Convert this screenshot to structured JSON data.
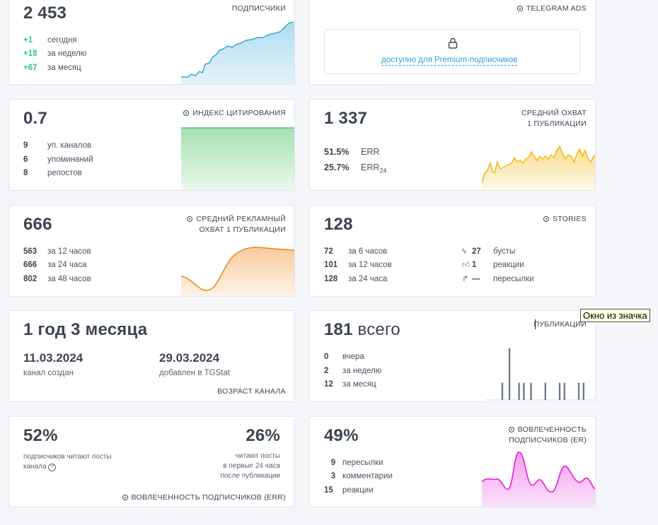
{
  "subscribers": {
    "value": "2 453",
    "title": "ПОДПИСЧИКИ",
    "rows": [
      {
        "num": "+1",
        "label": "сегодня"
      },
      {
        "num": "+18",
        "label": "за неделю"
      },
      {
        "num": "+67",
        "label": "за месяц"
      }
    ],
    "color": "#5bb8de"
  },
  "telegram_ads": {
    "title": "TELEGRAM ADS",
    "lock_icon": "lock-icon",
    "link": "доступно для Premium-подписчиков"
  },
  "citation": {
    "value": "0.7",
    "title": "ИНДЕКС ЦИТИРОВАНИЯ",
    "rows": [
      {
        "num": "9",
        "label": "уп. каналов"
      },
      {
        "num": "6",
        "label": "упоминаний"
      },
      {
        "num": "8",
        "label": "репостов"
      }
    ],
    "color": "#7ed58f"
  },
  "avg_reach": {
    "value": "1 337",
    "title_line1": "СРЕДНИЙ ОХВАТ",
    "title_line2": "1 ПУБЛИКАЦИИ",
    "err": {
      "num": "51.5%",
      "label": "ERR"
    },
    "err24": {
      "num": "25.7%",
      "label": "ERR",
      "sub": "24"
    },
    "color": "#f2c230"
  },
  "ad_reach": {
    "value": "666",
    "title_line1": "СРЕДНИЙ РЕКЛАМНЫЙ",
    "title_line2": "ОХВАТ 1 ПУБЛИКАЦИИ",
    "rows": [
      {
        "num": "563",
        "label": "за 12 часов"
      },
      {
        "num": "666",
        "label": "за 24 часа"
      },
      {
        "num": "802",
        "label": "за 48 часов"
      }
    ],
    "color": "#f0a04b"
  },
  "stories": {
    "value": "128",
    "title": "STORIES",
    "rows": [
      {
        "num": "72",
        "label": "за 6 часов"
      },
      {
        "num": "101",
        "label": "за 12 часов"
      },
      {
        "num": "128",
        "label": "за 24 часа"
      }
    ],
    "right_rows": [
      {
        "icon": "lightning-icon",
        "num": "27",
        "label": "бусты"
      },
      {
        "icon": "thumb-up-icon",
        "num": "1",
        "label": "реакции"
      },
      {
        "icon": "forward-icon",
        "num": "—",
        "label": "пересылки"
      }
    ]
  },
  "age": {
    "value": "1 год 3 месяца",
    "created_date": "11.03.2024",
    "created_label": "канал создан",
    "added_date": "29.03.2024",
    "added_label": "добавлен в TGStat",
    "title": "ВОЗРАСТ КАНАЛА"
  },
  "posts": {
    "value": "181",
    "unit": "всего",
    "title": "ПУБЛИКАЦИИ",
    "rows": [
      {
        "num": "0",
        "label": "вчера"
      },
      {
        "num": "2",
        "label": "за неделю"
      },
      {
        "num": "12",
        "label": "за месяц"
      }
    ],
    "bars": [
      0,
      0,
      0,
      0,
      0,
      0,
      1,
      0,
      0,
      3,
      0,
      0,
      0,
      1,
      0,
      1,
      0,
      0,
      1,
      0,
      0,
      0,
      0,
      0,
      1,
      0,
      0,
      0,
      0,
      0,
      1,
      0,
      1,
      0,
      0,
      0,
      0,
      0,
      1,
      0,
      1,
      0,
      0,
      0,
      0
    ],
    "color": "#6f7c8a"
  },
  "err_block": {
    "left_value": "52%",
    "left_label": "подписчиков читают посты канала",
    "right_value": "26%",
    "right_label_1": "читают посты",
    "right_label_2": "в первые 24 часа",
    "right_label_3": "после публикации",
    "title": "ВОВЛЕЧЕННОСТЬ ПОДПИСЧИКОВ (ERR)"
  },
  "er_block": {
    "value": "49%",
    "title_line1": "ВОВЛЕЧЕННОСТЬ",
    "title_line2": "ПОДПИСЧИКОВ (ER)",
    "rows": [
      {
        "num": "9",
        "label": "пересылки"
      },
      {
        "num": "3",
        "label": "комментарии"
      },
      {
        "num": "15",
        "label": "реакции"
      }
    ],
    "color": "#e83ee0"
  },
  "tooltip": "Окно из значка"
}
